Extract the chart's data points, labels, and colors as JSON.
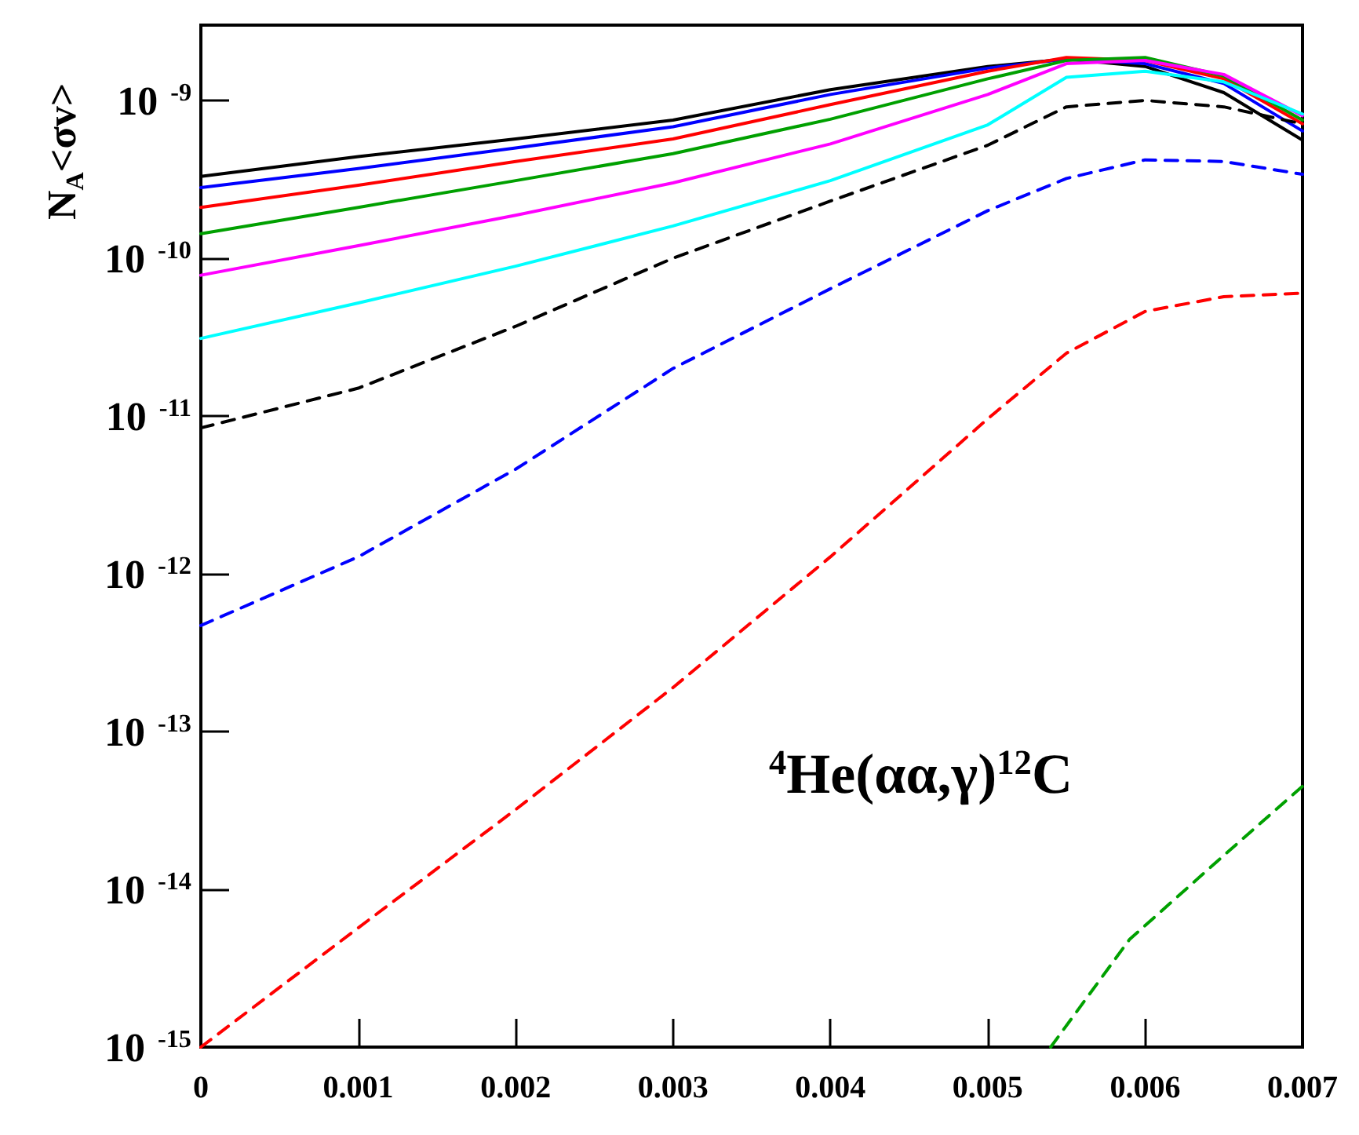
{
  "chart_data": {
    "type": "line",
    "ylabel": "N$_{A}$<σv>",
    "annotations": [
      "$^{4}$He(αα,γ)$^{12}$C"
    ],
    "log": "y",
    "grid": false,
    "marker": "none",
    "xlim": [
      0,
      0.007
    ],
    "xticks": [
      0,
      0.001,
      0.002,
      0.003,
      0.004,
      0.005,
      0.006,
      0.007
    ],
    "ylim": [
      1e-15,
      3e-09
    ],
    "yticks": [
      {
        "value": 1e-15,
        "label": "10$^{-15}$"
      },
      {
        "value": 1e-14,
        "label": "10$^{-14}$"
      },
      {
        "value": 1e-13,
        "label": "10$^{-13}$"
      },
      {
        "value": 1e-12,
        "label": "10$^{-12}$"
      },
      {
        "value": 1e-11,
        "label": "10$^{-11}$"
      },
      {
        "value": 1e-10,
        "label": "10$^{-10}$"
      },
      {
        "value": 1e-09,
        "label": "10$^{-9}$"
      }
    ],
    "x": [
      0,
      0.001,
      0.002,
      0.003,
      0.004,
      0.005,
      0.0055,
      0.006,
      0.0065,
      0.007
    ],
    "series": [
      {
        "color": "#000000",
        "line_style": "solid",
        "values": [
          3.3e-10,
          4.4e-10,
          5.7e-10,
          7.5e-10,
          1.17e-09,
          1.64e-09,
          1.83e-09,
          1.64e-09,
          1.12e-09,
          5.6e-10
        ]
      },
      {
        "color": "#0000ff",
        "line_style": "solid",
        "values": [
          2.8e-10,
          3.7e-10,
          5e-10,
          6.8e-10,
          1.09e-09,
          1.6e-09,
          1.83e-09,
          1.71e-09,
          1.28e-09,
          6.4e-10
        ]
      },
      {
        "color": "#ff0000",
        "line_style": "solid",
        "values": [
          2.1e-10,
          2.9e-10,
          4.1e-10,
          5.7e-10,
          9.4e-10,
          1.53e-09,
          1.87e-09,
          1.79e-09,
          1.37e-09,
          7.1e-10
        ]
      },
      {
        "color": "#00a000",
        "line_style": "solid",
        "values": [
          1.43e-10,
          2.1e-10,
          3.1e-10,
          4.6e-10,
          7.6e-10,
          1.37e-09,
          1.79e-09,
          1.87e-09,
          1.43e-09,
          7.5e-10
        ]
      },
      {
        "color": "#ff00ff",
        "line_style": "solid",
        "values": [
          7.8e-11,
          1.2e-10,
          1.87e-10,
          3e-10,
          5.3e-10,
          1.09e-09,
          1.71e-09,
          1.79e-09,
          1.46e-09,
          8e-10
        ]
      },
      {
        "color": "#00ffff",
        "line_style": "solid",
        "values": [
          3.1e-11,
          5.2e-11,
          8.9e-11,
          1.6e-10,
          3.1e-10,
          7e-10,
          1.4e-09,
          1.53e-09,
          1.31e-09,
          8.2e-10
        ]
      },
      {
        "color": "#000000",
        "line_style": "dashed",
        "values": [
          8.4e-12,
          1.5e-11,
          3.7e-11,
          1e-10,
          2.3e-10,
          5.2e-10,
          9.1e-10,
          1e-09,
          9.1e-10,
          7.1e-10
        ]
      },
      {
        "color": "#0000ff",
        "line_style": "dashed",
        "values": [
          4.7e-13,
          1.28e-12,
          4.6e-12,
          2e-11,
          6.4e-11,
          2e-10,
          3.2e-10,
          4.2e-10,
          4.1e-10,
          3.4e-10
        ]
      },
      {
        "color": "#ff0000",
        "line_style": "dashed",
        "x": [
          0,
          0.001,
          0.002,
          0.003,
          0.004,
          0.0045,
          0.005,
          0.0055,
          0.006,
          0.0065,
          0.007
        ],
        "values": [
          1e-15,
          5.7e-15,
          3.2e-14,
          1.9e-13,
          1.28e-12,
          3.5e-12,
          9.6e-12,
          2.5e-11,
          4.6e-11,
          5.7e-11,
          6e-11
        ]
      },
      {
        "color": "#00a000",
        "line_style": "dashed",
        "x": [
          0.0054,
          0.0059,
          0.0065,
          0.007
        ],
        "values": [
          1e-15,
          4.8e-15,
          1.64e-14,
          4.5e-14
        ]
      }
    ]
  }
}
